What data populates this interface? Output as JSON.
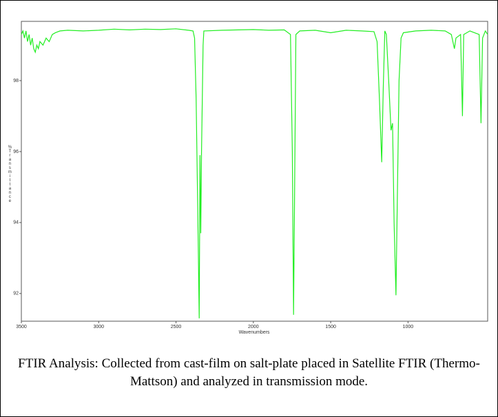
{
  "chart_data": {
    "type": "line",
    "x_label": "Wavenumbers",
    "y_label": "%Transmittance",
    "caption": "FTIR Analysis: Collected from cast-film on salt-plate placed in Satellite FTIR (Thermo-Mattson) and analyzed in transmission mode.",
    "color": "#22ee22",
    "xlim": [
      3500,
      485
    ],
    "ylim": [
      99.67,
      91.22
    ],
    "xticks": [
      3500,
      3000,
      2500,
      2000,
      1500,
      1000
    ],
    "yticks": [
      98,
      96,
      94,
      92
    ],
    "x": [
      3500,
      3490,
      3480,
      3470,
      3460,
      3450,
      3440,
      3430,
      3420,
      3410,
      3400,
      3390,
      3380,
      3360,
      3340,
      3320,
      3300,
      3280,
      3250,
      3200,
      3100,
      3000,
      2900,
      2800,
      2700,
      2600,
      2500,
      2420,
      2390,
      2380,
      2370,
      2360,
      2350,
      2345,
      2340,
      2335,
      2325,
      2320,
      2200,
      2100,
      2000,
      1900,
      1800,
      1760,
      1748,
      1740,
      1733,
      1725,
      1700,
      1600,
      1500,
      1400,
      1300,
      1220,
      1200,
      1185,
      1170,
      1160,
      1150,
      1140,
      1125,
      1110,
      1100,
      1090,
      1078,
      1068,
      1058,
      1045,
      1030,
      950,
      850,
      760,
      720,
      700,
      690,
      660,
      648,
      640,
      600,
      540,
      528,
      518,
      500,
      485
    ],
    "values": [
      99.3,
      99.4,
      99.2,
      99.4,
      99.1,
      99.3,
      99.0,
      99.2,
      98.9,
      98.8,
      99.0,
      98.9,
      99.1,
      99.0,
      99.2,
      99.1,
      99.3,
      99.35,
      99.4,
      99.42,
      99.4,
      99.42,
      99.45,
      99.43,
      99.45,
      99.44,
      99.46,
      99.42,
      99.4,
      99.2,
      97.5,
      94.5,
      91.3,
      95.9,
      93.7,
      96.0,
      99.0,
      99.4,
      99.42,
      99.43,
      99.44,
      99.42,
      99.43,
      99.3,
      96.0,
      91.4,
      95.0,
      99.3,
      99.4,
      99.42,
      99.35,
      99.42,
      99.4,
      99.38,
      99.1,
      97.5,
      95.7,
      97.8,
      99.4,
      99.3,
      98.0,
      96.6,
      96.8,
      94.0,
      91.95,
      95.0,
      98.0,
      99.2,
      99.35,
      99.4,
      99.42,
      99.4,
      99.3,
      98.9,
      99.2,
      99.3,
      97.0,
      99.3,
      99.4,
      99.3,
      96.8,
      99.2,
      99.4,
      99.3
    ]
  }
}
